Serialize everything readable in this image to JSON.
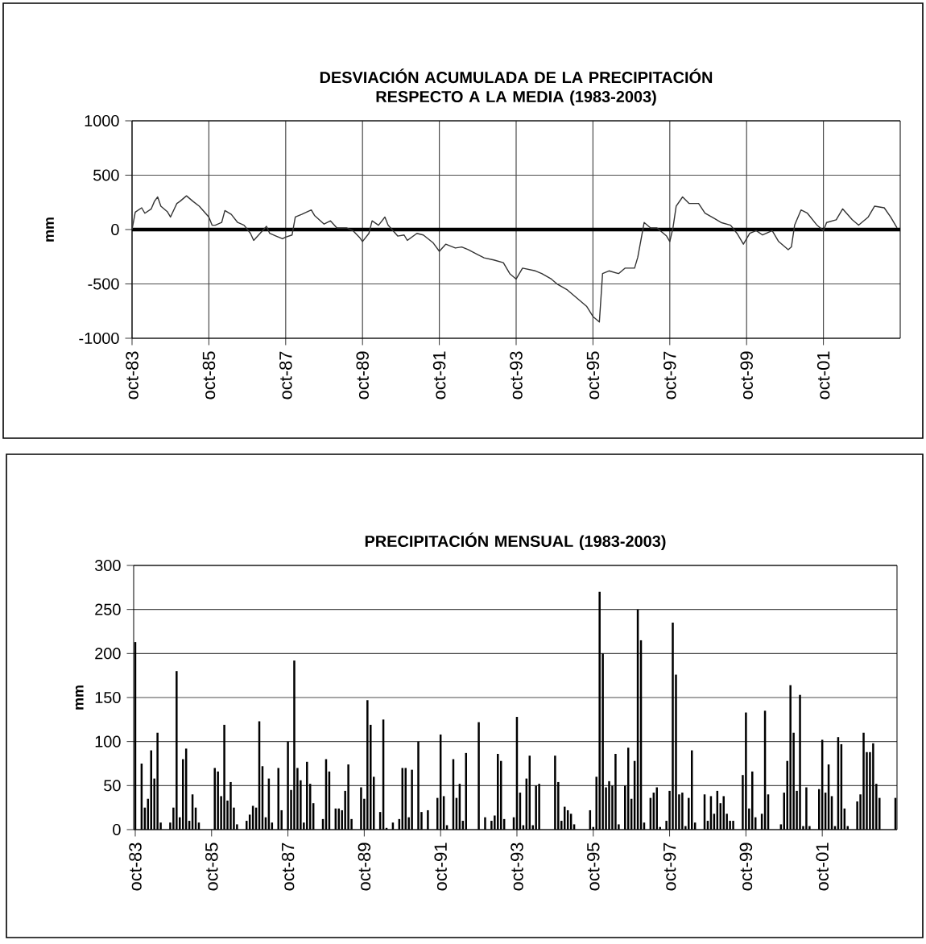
{
  "chart_data": [
    {
      "type": "line",
      "title": "DESVIACIÓN ACUMULADA DE LA PRECIPITACIÓN RESPECTO A LA MEDIA (1983-2003)",
      "ylabel": "mm",
      "color": "#333333",
      "grid": true,
      "xlim": [
        "1983-10",
        "2003-10"
      ],
      "ylim": [
        -1000,
        1000
      ],
      "yticks": [
        -1000,
        -500,
        0,
        500,
        1000
      ],
      "xticks": [
        {
          "value": "1983-10",
          "label": "oct-83"
        },
        {
          "value": "1985-10",
          "label": "oct-85"
        },
        {
          "value": "1987-10",
          "label": "oct-87"
        },
        {
          "value": "1989-10",
          "label": "oct-89"
        },
        {
          "value": "1991-10",
          "label": "oct-91"
        },
        {
          "value": "1993-10",
          "label": "oct-93"
        },
        {
          "value": "1995-10",
          "label": "oct-95"
        },
        {
          "value": "1997-10",
          "label": "oct-97"
        },
        {
          "value": "1999-10",
          "label": "oct-99"
        },
        {
          "value": "2001-10",
          "label": "oct-01"
        }
      ],
      "x": [
        "1983-10",
        "1983-11",
        "1984-01",
        "1984-02",
        "1984-04",
        "1984-05",
        "1984-06",
        "1984-07",
        "1984-09",
        "1984-10",
        "1984-12",
        "1985-01",
        "1985-03",
        "1985-05",
        "1985-07",
        "1985-10",
        "1985-11",
        "1985-12",
        "1986-02",
        "1986-03",
        "1986-05",
        "1986-07",
        "1986-09",
        "1986-11",
        "1986-12",
        "1987-02",
        "1987-04",
        "1987-05",
        "1987-07",
        "1987-09",
        "1987-10",
        "1987-12",
        "1988-01",
        "1988-03",
        "1988-06",
        "1988-07",
        "1988-10",
        "1988-12",
        "1989-02",
        "1989-05",
        "1989-07",
        "1989-09",
        "1989-10",
        "1989-12",
        "1990-01",
        "1990-03",
        "1990-05",
        "1990-06",
        "1990-09",
        "1990-11",
        "1990-12",
        "1991-03",
        "1991-05",
        "1991-08",
        "1991-10",
        "1991-12",
        "1992-03",
        "1992-05",
        "1992-07",
        "1992-10",
        "1992-12",
        "1993-03",
        "1993-06",
        "1993-08",
        "1993-10",
        "1993-12",
        "1994-04",
        "1994-06",
        "1994-09",
        "1994-11",
        "1995-02",
        "1995-04",
        "1995-08",
        "1995-10",
        "1995-12",
        "1996-01",
        "1996-03",
        "1996-06",
        "1996-08",
        "1996-11",
        "1996-12",
        "1997-02",
        "1997-04",
        "1997-06",
        "1997-09",
        "1997-10",
        "1997-11",
        "1997-12",
        "1998-02",
        "1998-04",
        "1998-07",
        "1998-09",
        "1998-12",
        "1999-02",
        "1999-05",
        "1999-07",
        "1999-09",
        "1999-11",
        "2000-01",
        "2000-03",
        "2000-06",
        "2000-08",
        "2000-11",
        "2000-12",
        "2001-01",
        "2001-03",
        "2001-05",
        "2001-08",
        "2001-10",
        "2001-11",
        "2002-02",
        "2002-04",
        "2002-07",
        "2002-09",
        "2002-12",
        "2003-02",
        "2003-05",
        "2003-07",
        "2003-09"
      ],
      "values": [
        0,
        160,
        200,
        150,
        190,
        260,
        300,
        215,
        165,
        115,
        240,
        260,
        310,
        260,
        215,
        115,
        40,
        40,
        65,
        175,
        140,
        65,
        40,
        -35,
        -100,
        -35,
        30,
        -35,
        -60,
        -85,
        -70,
        -50,
        115,
        140,
        180,
        130,
        50,
        80,
        15,
        15,
        -10,
        -70,
        -110,
        -35,
        80,
        40,
        115,
        40,
        -60,
        -50,
        -100,
        -35,
        -50,
        -120,
        -200,
        -135,
        -170,
        -160,
        -185,
        -230,
        -260,
        -280,
        -305,
        -405,
        -455,
        -355,
        -380,
        -405,
        -455,
        -505,
        -555,
        -605,
        -705,
        -800,
        -850,
        -405,
        -380,
        -405,
        -355,
        -355,
        -255,
        65,
        15,
        15,
        -60,
        -110,
        15,
        215,
        300,
        240,
        240,
        150,
        100,
        65,
        40,
        -35,
        -135,
        -35,
        -10,
        -50,
        -10,
        -110,
        -185,
        -160,
        40,
        180,
        150,
        40,
        -10,
        65,
        90,
        190,
        90,
        40,
        115,
        215,
        200,
        115,
        15
      ]
    },
    {
      "type": "bar",
      "title": "PRECIPITACIÓN MENSUAL (1983-2003)",
      "ylabel": "mm",
      "color": "#000000",
      "grid": "y",
      "ylim": [
        0,
        300
      ],
      "yticks": [
        0,
        50,
        100,
        150,
        200,
        250,
        300
      ],
      "categories": [
        "oct-83",
        null,
        null,
        null,
        null,
        null,
        null,
        null,
        null,
        null,
        null,
        null,
        null,
        null,
        null,
        null,
        null,
        null,
        null,
        null,
        null,
        null,
        null,
        null,
        "oct-85",
        null,
        null,
        null,
        null,
        null,
        null,
        null,
        null,
        null,
        null,
        null,
        null,
        null,
        null,
        null,
        null,
        null,
        null,
        null,
        null,
        null,
        null,
        null,
        "oct-87",
        null,
        null,
        null,
        null,
        null,
        null,
        null,
        null,
        null,
        null,
        null,
        null,
        null,
        null,
        null,
        null,
        null,
        null,
        null,
        null,
        null,
        null,
        null,
        "oct-89",
        null,
        null,
        null,
        null,
        null,
        null,
        null,
        null,
        null,
        null,
        null,
        null,
        null,
        null,
        null,
        null,
        null,
        null,
        null,
        null,
        null,
        null,
        null,
        "oct-91",
        null,
        null,
        null,
        null,
        null,
        null,
        null,
        null,
        null,
        null,
        null,
        null,
        null,
        null,
        null,
        null,
        null,
        null,
        null,
        null,
        null,
        null,
        null,
        "oct-93",
        null,
        null,
        null,
        null,
        null,
        null,
        null,
        null,
        null,
        null,
        null,
        null,
        null,
        null,
        null,
        null,
        null,
        null,
        null,
        null,
        null,
        null,
        null,
        "oct-95",
        null,
        null,
        null,
        null,
        null,
        null,
        null,
        null,
        null,
        null,
        null,
        null,
        null,
        null,
        null,
        null,
        null,
        null,
        null,
        null,
        null,
        null,
        null,
        "oct-97",
        null,
        null,
        null,
        null,
        null,
        null,
        null,
        null,
        null,
        null,
        null,
        null,
        null,
        null,
        null,
        null,
        null,
        null,
        null,
        null,
        null,
        null,
        null,
        "oct-99",
        null,
        null,
        null,
        null,
        null,
        null,
        null,
        null,
        null,
        null,
        null,
        null,
        null,
        null,
        null,
        null,
        null,
        null,
        null,
        null,
        null,
        null,
        null,
        "oct-01",
        null,
        null,
        null,
        null,
        null,
        null,
        null,
        null,
        null,
        null,
        null,
        null,
        null,
        null,
        null,
        null,
        null,
        null,
        null,
        null,
        null,
        null,
        null
      ],
      "values": [
        213,
        0,
        75,
        25,
        35,
        90,
        58,
        110,
        8,
        0,
        0,
        8,
        25,
        180,
        14,
        80,
        92,
        10,
        40,
        25,
        8,
        0,
        0,
        0,
        0,
        70,
        66,
        38,
        119,
        33,
        54,
        25,
        6,
        0,
        0,
        10,
        17,
        27,
        25,
        123,
        72,
        14,
        58,
        8,
        0,
        70,
        22,
        0,
        100,
        45,
        192,
        70,
        56,
        8,
        77,
        52,
        30,
        0,
        0,
        12,
        80,
        66,
        0,
        24,
        24,
        22,
        44,
        74,
        12,
        0,
        0,
        48,
        35,
        147,
        119,
        60,
        0,
        20,
        125,
        2,
        0,
        8,
        0,
        12,
        70,
        70,
        14,
        68,
        0,
        100,
        20,
        0,
        22,
        0,
        0,
        36,
        108,
        38,
        5,
        0,
        80,
        36,
        52,
        10,
        87,
        0,
        0,
        0,
        122,
        0,
        14,
        0,
        10,
        16,
        86,
        78,
        12,
        0,
        0,
        14,
        128,
        42,
        5,
        58,
        84,
        5,
        50,
        52,
        0,
        0,
        0,
        0,
        84,
        54,
        10,
        26,
        22,
        18,
        6,
        0,
        0,
        0,
        0,
        22,
        3,
        60,
        270,
        200,
        48,
        55,
        50,
        86,
        6,
        0,
        50,
        93,
        35,
        78,
        250,
        215,
        8,
        0,
        36,
        42,
        48,
        3,
        0,
        10,
        44,
        235,
        176,
        40,
        42,
        4,
        36,
        90,
        8,
        0,
        0,
        40,
        10,
        38,
        18,
        44,
        30,
        38,
        18,
        10,
        10,
        0,
        0,
        62,
        133,
        24,
        66,
        14,
        0,
        18,
        135,
        40,
        0,
        0,
        0,
        6,
        42,
        78,
        164,
        110,
        44,
        153,
        4,
        48,
        4,
        0,
        0,
        46,
        102,
        42,
        74,
        38,
        4,
        105,
        97,
        24,
        4,
        0,
        0,
        32,
        40,
        110,
        88,
        88,
        98,
        52,
        36,
        0,
        0,
        0,
        0,
        36
      ]
    }
  ]
}
